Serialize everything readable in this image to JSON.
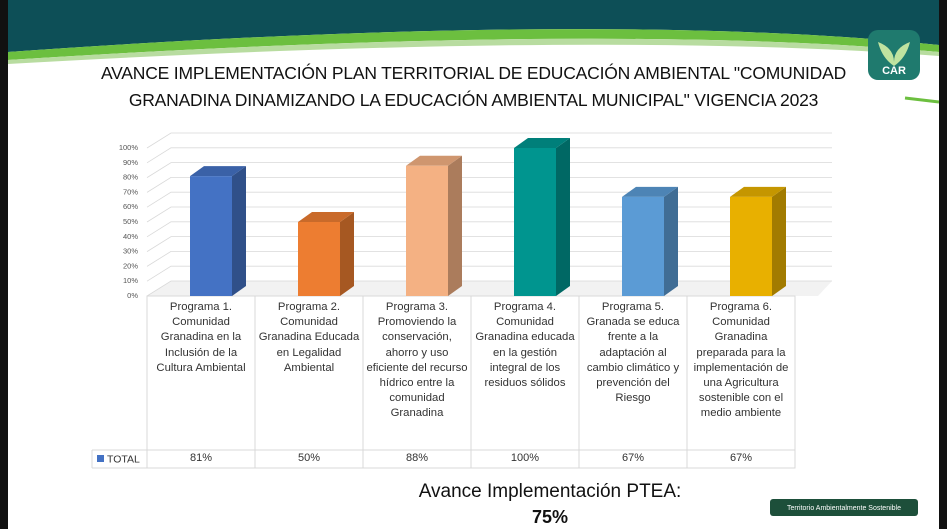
{
  "chart_data": {
    "type": "bar",
    "title": [
      "AVANCE IMPLEMENTACIÓN PLAN TERRITORIAL DE EDUCACIÓN AMBIENTAL \"COMUNIDAD",
      "GRANADINA DINAMIZANDO LA EDUCACIÓN AMBIENTAL MUNICIPAL\" VIGENCIA 2023"
    ],
    "categories": [
      "Programa 1. Comunidad Granadina en la Inclusión de la Cultura Ambiental",
      "Programa 2. Comunidad Granadina Educada en Legalidad Ambiental",
      "Programa 3. Promoviendo la conservación, ahorro y uso eficiente del recurso hídrico entre la comunidad Granadina",
      "Programa 4. Comunidad Granadina educada en la gestión integral de los residuos sólidos",
      "Programa 5. Granada se educa frente a la adaptación al cambio climático y prevención del Riesgo",
      "Programa 6. Comunidad Granadina preparada para la implementación de una Agricultura sostenible con el medio ambiente"
    ],
    "series": [
      {
        "name": "TOTAL",
        "color": "#4472c4",
        "colors": [
          "#4472c4",
          "#ed7d31",
          "#f4b183",
          "#00958f",
          "#5b9bd5",
          "#e8b000"
        ],
        "values": [
          81,
          50,
          88,
          100,
          67,
          67
        ],
        "value_labels": [
          "81%",
          "50%",
          "88%",
          "100%",
          "67%",
          "67%"
        ]
      }
    ],
    "ylim": [
      0,
      100
    ],
    "yticks": [
      {
        "value": 0,
        "label": "0%"
      },
      {
        "value": 10,
        "label": "10%"
      },
      {
        "value": 20,
        "label": "20%"
      },
      {
        "value": 30,
        "label": "30%"
      },
      {
        "value": 40,
        "label": "40%"
      },
      {
        "value": 50,
        "label": "50%"
      },
      {
        "value": 60,
        "label": "60%"
      },
      {
        "value": 70,
        "label": "70%"
      },
      {
        "value": 80,
        "label": "80%"
      },
      {
        "value": 90,
        "label": "90%"
      },
      {
        "value": 100,
        "label": "100%"
      }
    ],
    "grid": true,
    "annotations": [
      "Avance Implementación PTEA:",
      "75%"
    ]
  },
  "logo": "CAR",
  "footer": "Territorio Ambientalmente Sostenible"
}
